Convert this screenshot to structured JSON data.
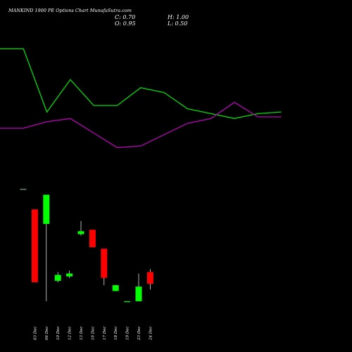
{
  "chart_data": {
    "type": "candlestick",
    "title": "MANKIND 1900  PE Options   Chart MunafaSutra.com",
    "readout": {
      "close": "C: 0.70",
      "open": "O: 0.95",
      "high": "H: 1.00",
      "low": "L: 0.50"
    },
    "colors": {
      "up": "#00ff00",
      "down": "#ff0000",
      "flat": "#88aa88",
      "line_green": "#00dd00",
      "line_magenta": "#bb00bb",
      "wick": "#ffffff"
    },
    "price_range": [
      0,
      42
    ],
    "candles": [
      {
        "label": "",
        "open": 39.5,
        "high": 39.5,
        "low": 39.5,
        "close": 39.5
      },
      {
        "label": "03 Dec",
        "open": 32.5,
        "high": 32.5,
        "low": 7.5,
        "close": 7.5
      },
      {
        "label": "06 Dec",
        "open": 27.5,
        "high": 37.5,
        "low": 1.0,
        "close": 37.5
      },
      {
        "label": "10 Dec",
        "open": 8.0,
        "high": 11.0,
        "low": 7.5,
        "close": 10.0
      },
      {
        "label": "12 Dec",
        "open": 9.5,
        "high": 11.5,
        "low": 9.0,
        "close": 10.5
      },
      {
        "label": "13 Dec",
        "open": 24.0,
        "high": 28.5,
        "low": 23.5,
        "close": 25.0
      },
      {
        "label": "16 Dec",
        "open": 25.5,
        "high": 25.5,
        "low": 19.5,
        "close": 19.5
      },
      {
        "label": "17 Dec",
        "open": 19.0,
        "high": 19.0,
        "low": 6.5,
        "close": 9.0
      },
      {
        "label": "18 Dec",
        "open": 4.5,
        "high": 6.5,
        "low": 4.5,
        "close": 6.5
      },
      {
        "label": "19 Dec",
        "open": 1.0,
        "high": 1.0,
        "low": 1.0,
        "close": 1.0
      },
      {
        "label": "23 Dec",
        "open": 1.0,
        "high": 10.5,
        "low": 1.0,
        "close": 6.0
      },
      {
        "label": "24 Dec",
        "open": 11.0,
        "high": 12.0,
        "low": 5.0,
        "close": 7.0
      }
    ],
    "line_series": [
      {
        "color": "green",
        "values": [
          82,
          82,
          43,
          63,
          47,
          47,
          58,
          55,
          45,
          42,
          39,
          42,
          43
        ]
      },
      {
        "color": "magenta",
        "values": [
          33,
          33,
          37,
          39,
          30,
          21,
          22,
          29,
          36,
          39,
          49,
          40,
          40
        ]
      }
    ],
    "line_range": [
      0,
      100
    ]
  }
}
